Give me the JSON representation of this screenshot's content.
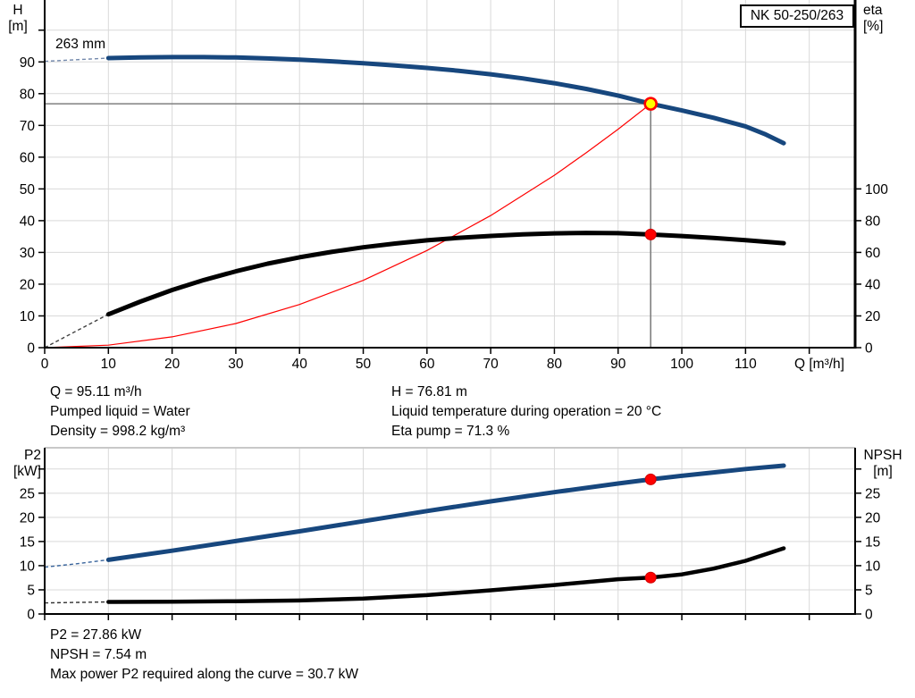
{
  "pump": {
    "model": "NK 50-250/263",
    "impeller_diameter": "263 mm"
  },
  "axis_labels": {
    "h": "H",
    "h_unit": "[m]",
    "eta": "eta",
    "eta_unit": "[%]",
    "q": "Q [m³/h]",
    "p2": "P2",
    "p2_unit": "[kW]",
    "npsh": "NPSH",
    "npsh_unit": "[m]"
  },
  "annotations": {
    "q": "Q = 95.11 m³/h",
    "pumped_liquid": "Pumped liquid = Water",
    "density": "Density = 998.2 kg/m³",
    "h": "H = 76.81 m",
    "temperature": "Liquid temperature during operation = 20 °C",
    "eta_pump": "Eta pump = 71.3 %",
    "p2": "P2 = 27.86 kW",
    "npsh": "NPSH = 7.54 m",
    "max_power": "Max power P2 required along the curve = 30.7 kW"
  },
  "style": {
    "grid": "#d9d9d9",
    "axis": "#000000",
    "duty_line": "#808080",
    "top_border": "#c8c8c8",
    "background": "#ffffff"
  },
  "chart_data": [
    {
      "type": "line",
      "name": "head-efficiency-chart",
      "xlabel": "Q [m³/h]",
      "ylabel_left": "H [m]",
      "ylabel_right": "eta [%]",
      "xlim": [
        0,
        127.2
      ],
      "ylim_left": [
        0,
        109.5
      ],
      "ylim_right": [
        0,
        219.0
      ],
      "x_ticks": [
        {
          "v": 0,
          "l": "0"
        },
        {
          "v": 10,
          "l": "10"
        },
        {
          "v": 20,
          "l": "20"
        },
        {
          "v": 30,
          "l": "30"
        },
        {
          "v": 40,
          "l": "40"
        },
        {
          "v": 50,
          "l": "50"
        },
        {
          "v": 60,
          "l": "60"
        },
        {
          "v": 70,
          "l": "70"
        },
        {
          "v": 80,
          "l": "80"
        },
        {
          "v": 90,
          "l": "90"
        },
        {
          "v": 100,
          "l": "100"
        },
        {
          "v": 110,
          "l": "110"
        },
        {
          "v": 120,
          "l": ""
        }
      ],
      "left_ticks": [
        {
          "v": 0,
          "l": "0"
        },
        {
          "v": 10,
          "l": "10"
        },
        {
          "v": 20,
          "l": "20"
        },
        {
          "v": 30,
          "l": "30"
        },
        {
          "v": 40,
          "l": "40"
        },
        {
          "v": 50,
          "l": "50"
        },
        {
          "v": 60,
          "l": "60"
        },
        {
          "v": 70,
          "l": "70"
        },
        {
          "v": 80,
          "l": "80"
        },
        {
          "v": 90,
          "l": "90"
        },
        {
          "v": 100,
          "l": ""
        }
      ],
      "right_ticks": [
        {
          "v": 0,
          "l": "0"
        },
        {
          "v": 20,
          "l": "20"
        },
        {
          "v": 40,
          "l": "40"
        },
        {
          "v": 60,
          "l": "60"
        },
        {
          "v": 80,
          "l": "80"
        },
        {
          "v": 100,
          "l": "100"
        }
      ],
      "series": [
        {
          "name": "system-curve",
          "axis": "left",
          "color": "#fe0000",
          "width": 1.2,
          "points": [
            [
              0,
              0
            ],
            [
              10,
              0.8
            ],
            [
              20,
              3.4
            ],
            [
              30,
              7.6
            ],
            [
              40,
              13.6
            ],
            [
              50,
              21.2
            ],
            [
              60,
              30.6
            ],
            [
              70,
              41.6
            ],
            [
              80,
              54.3
            ],
            [
              85,
              61.4
            ],
            [
              90,
              68.8
            ],
            [
              95.11,
              76.81
            ]
          ]
        },
        {
          "name": "efficiency-curve",
          "axis": "right",
          "color": "#000000",
          "width": 5,
          "lead_color": "#404040",
          "lead_width": 1.4,
          "dashed_lead": [
            [
              0,
              0
            ],
            [
              2.5,
              5.3
            ],
            [
              5,
              10.6
            ],
            [
              7.5,
              15.8
            ],
            [
              10,
              21
            ]
          ],
          "points": [
            [
              10,
              21
            ],
            [
              15,
              29
            ],
            [
              20,
              36.3
            ],
            [
              25,
              42.6
            ],
            [
              30,
              48.1
            ],
            [
              35,
              52.9
            ],
            [
              40,
              56.9
            ],
            [
              45,
              60.3
            ],
            [
              50,
              63.2
            ],
            [
              55,
              65.6
            ],
            [
              60,
              67.6
            ],
            [
              65,
              69.2
            ],
            [
              70,
              70.4
            ],
            [
              75,
              71.4
            ],
            [
              80,
              72
            ],
            [
              85,
              72.3
            ],
            [
              90,
              72.1
            ],
            [
              95.11,
              71.3
            ],
            [
              100,
              70.3
            ],
            [
              105,
              69.1
            ],
            [
              110,
              67.7
            ],
            [
              116,
              65.8
            ]
          ]
        },
        {
          "name": "head-curve",
          "axis": "left",
          "color": "#17477e",
          "width": 5,
          "lead_color": "#7288ab",
          "lead_width": 1.4,
          "dashed_lead": [
            [
              0,
              90.2
            ],
            [
              5,
              90.7
            ],
            [
              10,
              91.2
            ]
          ],
          "points": [
            [
              10,
              91.2
            ],
            [
              15,
              91.4
            ],
            [
              20,
              91.5
            ],
            [
              25,
              91.5
            ],
            [
              30,
              91.4
            ],
            [
              35,
              91.1
            ],
            [
              40,
              90.7
            ],
            [
              45,
              90.2
            ],
            [
              50,
              89.6
            ],
            [
              55,
              88.9
            ],
            [
              60,
              88.1
            ],
            [
              65,
              87.2
            ],
            [
              70,
              86.1
            ],
            [
              75,
              84.8
            ],
            [
              80,
              83.3
            ],
            [
              85,
              81.5
            ],
            [
              90,
              79.4
            ],
            [
              95.11,
              76.81
            ],
            [
              100,
              74.7
            ],
            [
              105,
              72.4
            ],
            [
              110,
              69.7
            ],
            [
              113,
              67.3
            ],
            [
              116,
              64.4
            ]
          ]
        }
      ],
      "duty_lines": {
        "h": {
          "value": 76.81,
          "from_x": 0,
          "to_x": 95.11
        },
        "v": {
          "x": 95.11,
          "from_y": 0,
          "to_y": 76.81
        }
      },
      "markers": [
        {
          "name": "duty-point",
          "x": 95.11,
          "value": 76.81,
          "axis": "left",
          "fill": "#ffff00",
          "stroke": "#fe0000",
          "r": 6.5,
          "sw": 2.6,
          "interactable": true
        },
        {
          "name": "efficiency-point",
          "x": 95.11,
          "value": 71.3,
          "axis": "right",
          "fill": "#fe0000",
          "stroke": "#d00000",
          "r": 6,
          "sw": 1,
          "interactable": false
        }
      ]
    },
    {
      "type": "line",
      "name": "power-npsh-chart",
      "xlabel": "",
      "ylabel_left": "P2 [kW]",
      "ylabel_right": "NPSH [m]",
      "xlim": [
        0,
        127.2
      ],
      "ylim_left": [
        0,
        34.4
      ],
      "ylim_right": [
        0,
        34.4
      ],
      "x_ticks": [
        {
          "v": 0,
          "l": ""
        },
        {
          "v": 10,
          "l": ""
        },
        {
          "v": 20,
          "l": ""
        },
        {
          "v": 30,
          "l": ""
        },
        {
          "v": 40,
          "l": ""
        },
        {
          "v": 50,
          "l": ""
        },
        {
          "v": 60,
          "l": ""
        },
        {
          "v": 70,
          "l": ""
        },
        {
          "v": 80,
          "l": ""
        },
        {
          "v": 90,
          "l": ""
        },
        {
          "v": 100,
          "l": ""
        },
        {
          "v": 110,
          "l": ""
        },
        {
          "v": 120,
          "l": ""
        }
      ],
      "left_ticks": [
        {
          "v": 0,
          "l": "0"
        },
        {
          "v": 5,
          "l": "5"
        },
        {
          "v": 10,
          "l": "10"
        },
        {
          "v": 15,
          "l": "15"
        },
        {
          "v": 20,
          "l": "20"
        },
        {
          "v": 25,
          "l": "25"
        },
        {
          "v": 30,
          "l": ""
        }
      ],
      "right_ticks": [
        {
          "v": 0,
          "l": "0"
        },
        {
          "v": 5,
          "l": "5"
        },
        {
          "v": 10,
          "l": "10"
        },
        {
          "v": 15,
          "l": "15"
        },
        {
          "v": 20,
          "l": "20"
        },
        {
          "v": 25,
          "l": "25"
        },
        {
          "v": 30,
          "l": ""
        }
      ],
      "series": [
        {
          "name": "p2-curve",
          "axis": "left",
          "color": "#17477e",
          "width": 5,
          "lead_color": "#37639b",
          "lead_width": 1.4,
          "dashed_lead": [
            [
              0,
              9.7
            ],
            [
              5,
              10.4
            ],
            [
              10,
              11.2
            ]
          ],
          "points": [
            [
              10,
              11.2
            ],
            [
              20,
              13.1
            ],
            [
              30,
              15.1
            ],
            [
              40,
              17.1
            ],
            [
              50,
              19.2
            ],
            [
              60,
              21.3
            ],
            [
              70,
              23.3
            ],
            [
              80,
              25.2
            ],
            [
              90,
              27
            ],
            [
              95.11,
              27.86
            ],
            [
              100,
              28.6
            ],
            [
              105,
              29.3
            ],
            [
              110,
              30
            ],
            [
              116,
              30.7
            ]
          ]
        },
        {
          "name": "npsh-curve",
          "axis": "right",
          "color": "#000000",
          "width": 4.5,
          "lead_color": "#303030",
          "lead_width": 1.4,
          "dashed_lead": [
            [
              0,
              2.3
            ],
            [
              10,
              2.5
            ]
          ],
          "points": [
            [
              10,
              2.5
            ],
            [
              20,
              2.55
            ],
            [
              30,
              2.65
            ],
            [
              40,
              2.8
            ],
            [
              50,
              3.2
            ],
            [
              60,
              3.9
            ],
            [
              70,
              4.9
            ],
            [
              80,
              6
            ],
            [
              90,
              7.2
            ],
            [
              95.11,
              7.54
            ],
            [
              100,
              8.2
            ],
            [
              105,
              9.4
            ],
            [
              110,
              11
            ],
            [
              116,
              13.6
            ]
          ]
        }
      ],
      "markers": [
        {
          "name": "p2-point",
          "x": 95.11,
          "value": 27.86,
          "axis": "left",
          "fill": "#fe0000",
          "stroke": "#d00000",
          "r": 6,
          "sw": 1,
          "interactable": false
        },
        {
          "name": "npsh-point",
          "x": 95.11,
          "value": 7.54,
          "axis": "right",
          "fill": "#fe0000",
          "stroke": "#d00000",
          "r": 6,
          "sw": 1,
          "interactable": false
        }
      ]
    }
  ]
}
